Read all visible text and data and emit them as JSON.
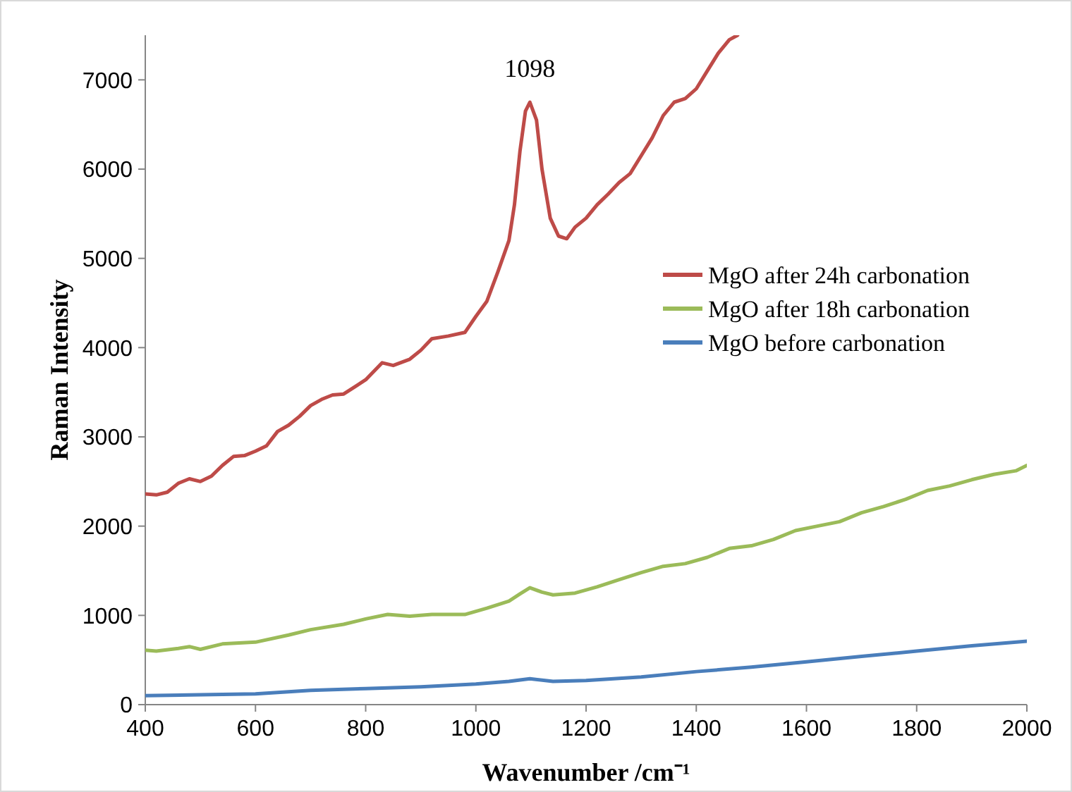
{
  "chart_data": {
    "type": "line",
    "xlabel": "Wavenumber /cm⁻¹",
    "ylabel": "Raman Intensity",
    "xlim": [
      400,
      2000
    ],
    "xticks": [
      400,
      600,
      800,
      1000,
      1200,
      1400,
      1600,
      1800,
      2000
    ],
    "ylim": [
      0,
      7500
    ],
    "yticks": [
      0,
      1000,
      2000,
      3000,
      4000,
      5000,
      6000,
      7000
    ],
    "grid": false,
    "legend": "right",
    "marker": "none",
    "line_style": "solid",
    "annotations": [
      {
        "text": "1098",
        "x": 1098,
        "y": 6750
      }
    ],
    "series": [
      {
        "name": "MgO after 24h carbonation",
        "color": "#be4b48",
        "x": [
          400,
          420,
          440,
          460,
          480,
          500,
          520,
          540,
          560,
          580,
          600,
          620,
          640,
          660,
          680,
          700,
          720,
          740,
          760,
          780,
          800,
          830,
          850,
          880,
          900,
          920,
          950,
          980,
          1000,
          1020,
          1040,
          1060,
          1070,
          1080,
          1090,
          1098,
          1110,
          1120,
          1135,
          1150,
          1165,
          1180,
          1200,
          1220,
          1240,
          1260,
          1280,
          1300,
          1320,
          1340,
          1360,
          1380,
          1400,
          1420,
          1440,
          1460,
          1475
        ],
        "values": [
          2360,
          2350,
          2380,
          2480,
          2530,
          2500,
          2560,
          2680,
          2780,
          2790,
          2840,
          2900,
          3060,
          3130,
          3230,
          3350,
          3420,
          3470,
          3480,
          3560,
          3640,
          3830,
          3800,
          3870,
          3970,
          4100,
          4130,
          4170,
          4350,
          4520,
          4850,
          5200,
          5600,
          6200,
          6650,
          6750,
          6550,
          6000,
          5450,
          5250,
          5220,
          5350,
          5450,
          5600,
          5720,
          5850,
          5950,
          6150,
          6350,
          6600,
          6750,
          6790,
          6900,
          7100,
          7300,
          7450,
          7500
        ]
      },
      {
        "name": "MgO after 18h carbonation",
        "color": "#9bbb59",
        "x": [
          400,
          420,
          460,
          480,
          500,
          540,
          600,
          660,
          700,
          760,
          800,
          840,
          880,
          920,
          980,
          1020,
          1060,
          1080,
          1098,
          1120,
          1140,
          1180,
          1220,
          1260,
          1300,
          1340,
          1380,
          1420,
          1460,
          1500,
          1540,
          1580,
          1620,
          1660,
          1700,
          1740,
          1780,
          1820,
          1860,
          1900,
          1940,
          1980,
          2000
        ],
        "values": [
          610,
          600,
          630,
          650,
          620,
          680,
          700,
          780,
          840,
          900,
          960,
          1010,
          990,
          1010,
          1010,
          1080,
          1160,
          1240,
          1310,
          1260,
          1230,
          1250,
          1320,
          1400,
          1480,
          1550,
          1580,
          1650,
          1750,
          1780,
          1850,
          1950,
          2000,
          2050,
          2150,
          2220,
          2300,
          2400,
          2450,
          2520,
          2580,
          2620,
          2680
        ]
      },
      {
        "name": "MgO before carbonation",
        "color": "#4a7ebb",
        "x": [
          400,
          500,
          600,
          700,
          800,
          900,
          1000,
          1060,
          1098,
          1140,
          1200,
          1300,
          1400,
          1500,
          1600,
          1700,
          1800,
          1900,
          2000
        ],
        "values": [
          100,
          110,
          120,
          160,
          180,
          200,
          230,
          260,
          290,
          260,
          270,
          310,
          370,
          420,
          480,
          540,
          600,
          660,
          710
        ]
      }
    ]
  }
}
